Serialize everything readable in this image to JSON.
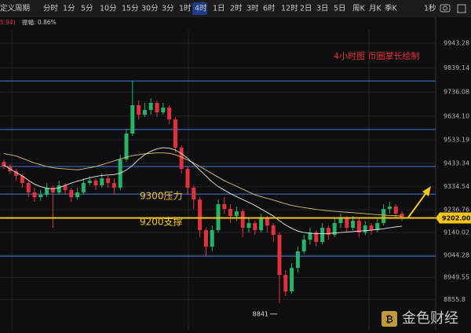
{
  "toolbar": {
    "items": [
      "定义周期",
      "分时",
      "1分",
      "5分",
      "10分",
      "15分",
      "30分",
      "3分",
      "1时",
      "4时",
      "1日",
      "2时",
      "3时",
      "6时",
      "12时",
      "2日",
      "3日",
      "5日",
      "周K",
      "月K",
      "季K",
      "1秒"
    ],
    "active": 9
  },
  "info": [
    "5.94)",
    "振幅: 0.86%"
  ],
  "watermark": "金色财经",
  "chart_data": {
    "type": "candlestick",
    "open": [
      9440,
      9420,
      9400,
      9380,
      9350,
      9310,
      9290,
      9300,
      9330,
      9310,
      9340,
      9320,
      9290,
      9310,
      9350,
      9360,
      9340,
      9370,
      9350,
      9330,
      9450,
      9560,
      9680,
      9640,
      9660,
      9690,
      9650,
      9670,
      9620,
      9500,
      9410,
      9330,
      9280,
      9150,
      9080,
      9150,
      9260,
      9240,
      9210,
      9230,
      9160,
      9180,
      9150,
      9200,
      9170,
      9130,
      8960,
      8890,
      8990,
      9060,
      9110,
      9140,
      9100,
      9160,
      9130,
      9180,
      9200,
      9160,
      9190,
      9140,
      9170,
      9150,
      9180,
      9240,
      9250,
      9220
    ],
    "high": [
      9450,
      9430,
      9410,
      9390,
      9360,
      9330,
      9320,
      9350,
      9340,
      9360,
      9350,
      9330,
      9330,
      9370,
      9380,
      9370,
      9390,
      9380,
      9370,
      9470,
      9580,
      9783,
      9700,
      9690,
      9710,
      9700,
      9690,
      9680,
      9630,
      9510,
      9420,
      9340,
      9290,
      9160,
      9170,
      9280,
      9290,
      9260,
      9250,
      9240,
      9200,
      9190,
      9220,
      9210,
      9180,
      9140,
      8980,
      9010,
      9080,
      9130,
      9160,
      9150,
      9180,
      9170,
      9200,
      9220,
      9210,
      9210,
      9200,
      9190,
      9180,
      9200,
      9260,
      9270,
      9260,
      9230
    ],
    "low": [
      9410,
      9390,
      9360,
      9330,
      9290,
      9270,
      9275,
      9290,
      9160,
      9300,
      9300,
      9270,
      9280,
      9300,
      9340,
      9320,
      9330,
      9330,
      9300,
      9320,
      9440,
      9550,
      9620,
      9630,
      9640,
      9630,
      9640,
      9600,
      9480,
      9390,
      9300,
      9240,
      9120,
      9040,
      9060,
      9140,
      9220,
      9180,
      9190,
      9120,
      9140,
      9130,
      9140,
      9140,
      9100,
      8841,
      8870,
      8880,
      8970,
      9050,
      9090,
      9080,
      9090,
      9110,
      9120,
      9160,
      9140,
      9150,
      9120,
      9130,
      9130,
      9140,
      9170,
      9220,
      9200,
      9190
    ],
    "close": [
      9420,
      9400,
      9380,
      9350,
      9310,
      9290,
      9300,
      9330,
      9310,
      9340,
      9320,
      9290,
      9310,
      9350,
      9360,
      9340,
      9370,
      9350,
      9330,
      9450,
      9560,
      9680,
      9640,
      9660,
      9690,
      9650,
      9670,
      9620,
      9500,
      9410,
      9330,
      9280,
      9150,
      9080,
      9150,
      9260,
      9240,
      9210,
      9230,
      9160,
      9180,
      9150,
      9200,
      9170,
      9130,
      8960,
      8890,
      8990,
      9060,
      9110,
      9140,
      9100,
      9160,
      9130,
      9180,
      9200,
      9160,
      9190,
      9140,
      9170,
      9150,
      9180,
      9240,
      9250,
      9220,
      9202
    ],
    "up_color": "#26b36a",
    "down_color": "#e3313b",
    "overlays": [
      {
        "color": "#d8c46a",
        "values": [
          9475,
          9470,
          9465,
          9455,
          9445,
          9435,
          9428,
          9420,
          9415,
          9412,
          9410,
          9408,
          9406,
          9410,
          9415,
          9420,
          9428,
          9436,
          9444,
          9452,
          9460,
          9466,
          9470,
          9474,
          9476,
          9478,
          9478,
          9476,
          9470,
          9460,
          9448,
          9435,
          9420,
          9405,
          9390,
          9375,
          9360,
          9348,
          9336,
          9324,
          9312,
          9300,
          9292,
          9285,
          9278,
          9270,
          9262,
          9255,
          9250,
          9246,
          9242,
          9238,
          9235,
          9232,
          9230,
          9228,
          9226,
          9224,
          9222,
          9220,
          9218,
          9216,
          9214,
          9212,
          9211,
          9210
        ]
      },
      {
        "color": "#e8e8e8",
        "values": [
          9426,
          9410,
          9395,
          9380,
          9362,
          9345,
          9335,
          9328,
          9325,
          9330,
          9340,
          9350,
          9358,
          9365,
          9372,
          9378,
          9382,
          9384,
          9386,
          9392,
          9405,
          9425,
          9450,
          9470,
          9485,
          9495,
          9500,
          9498,
          9490,
          9475,
          9455,
          9430,
          9405,
          9380,
          9355,
          9335,
          9320,
          9305,
          9292,
          9280,
          9268,
          9255,
          9240,
          9225,
          9210,
          9190,
          9172,
          9158,
          9146,
          9140,
          9137,
          9135,
          9135,
          9136,
          9138,
          9140,
          9142,
          9144,
          9146,
          9148,
          9150,
          9153,
          9156,
          9160,
          9164,
          9167
        ]
      }
    ],
    "hlines": [
      9783,
      9577,
      9420,
      9303,
      9040
    ],
    "hline_color": "#4a7fd6",
    "ylim": [
      8727,
      10000
    ],
    "yticks": [
      9943.28,
      9839.14,
      9736.08,
      {
        "value": 9634.1,
        "label": "9634.10"
      },
      9533.19,
      9433.34,
      9334.54,
      9236.76,
      9140.02,
      9044.28,
      8949.55,
      8855.8
    ],
    "current_price": {
      "value": 9202,
      "label": "9202.00",
      "color": "#f5c518"
    },
    "annotations": [
      {
        "text": "4小时图 币圈掌长绘制",
        "color": "#e3313b"
      },
      {
        "text": "9300压力",
        "color": "#f5c518"
      },
      {
        "text": "9200支撑",
        "color": "#f5c518"
      }
    ]
  }
}
